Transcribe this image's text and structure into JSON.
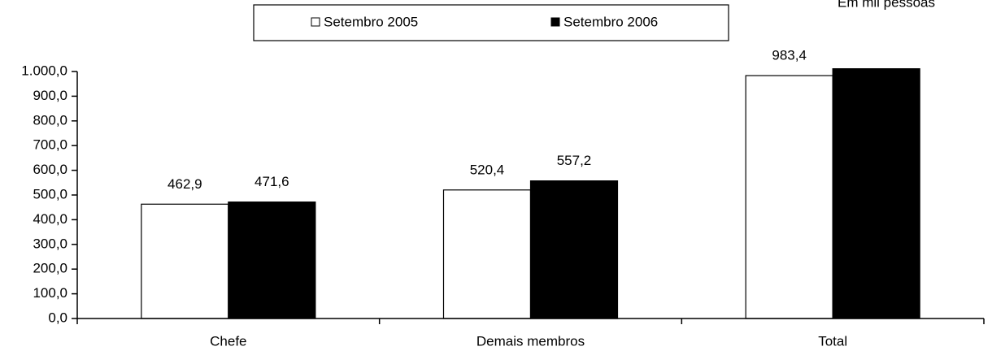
{
  "chart_data": {
    "type": "bar",
    "note": "Em mil pessoas",
    "categories": [
      "Chefe",
      "Demais membros",
      "Total"
    ],
    "series": [
      {
        "name": "Setembro 2005",
        "color": "#ffffff",
        "values": [
          462.9,
          520.4,
          983.4
        ],
        "value_labels": [
          "462,9",
          "520,4",
          "983,4"
        ]
      },
      {
        "name": "Setembro 2006",
        "color": "#000000",
        "values": [
          471.6,
          557.2,
          1028.8
        ],
        "value_labels": [
          "471,6",
          "557,2",
          null
        ]
      }
    ],
    "ylim": [
      0,
      1000
    ],
    "yticks": [
      {
        "value": 0,
        "label": "0,0"
      },
      {
        "value": 100,
        "label": "100,0"
      },
      {
        "value": 200,
        "label": "200,0"
      },
      {
        "value": 300,
        "label": "300,0"
      },
      {
        "value": 400,
        "label": "400,0"
      },
      {
        "value": 500,
        "label": "500,0"
      },
      {
        "value": 600,
        "label": "600,0"
      },
      {
        "value": 700,
        "label": "700,0"
      },
      {
        "value": 800,
        "label": "800,0"
      },
      {
        "value": 900,
        "label": "900,0"
      },
      {
        "value": 1000,
        "label": "1.000,0"
      }
    ],
    "grid": false,
    "legend": "top"
  }
}
